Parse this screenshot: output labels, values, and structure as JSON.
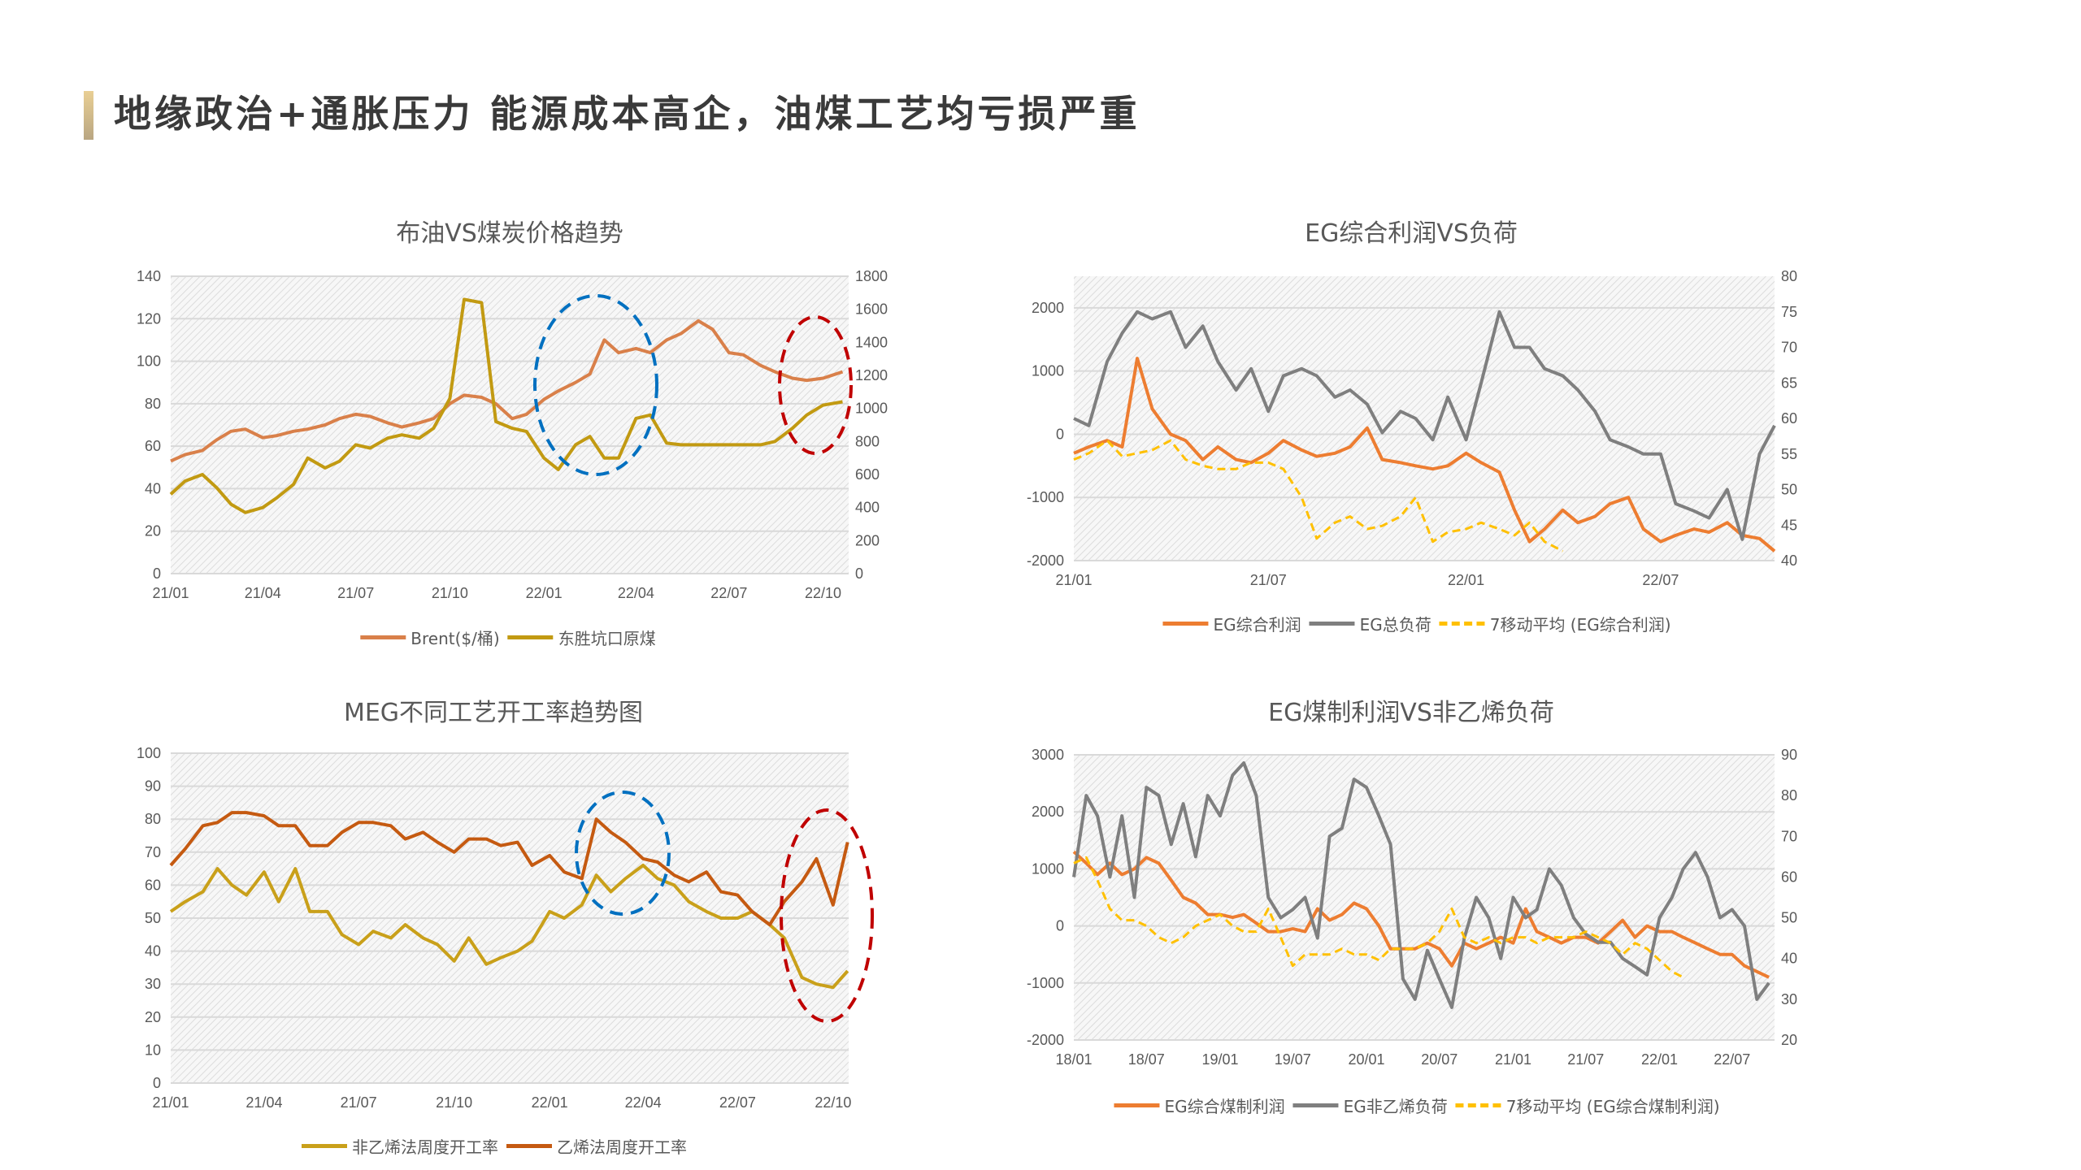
{
  "header": {
    "title": "地缘政治+通胀压力 能源成本高企，油煤工艺均亏损严重"
  },
  "chart_data": [
    {
      "type": "line",
      "title": "布油VS煤炭价格趋势",
      "xlim": [
        "2021-01-01",
        "2022-10-26"
      ],
      "xticks": [
        [
          "2021-01-01",
          "21/01"
        ],
        [
          "2021-04-01",
          "21/04"
        ],
        [
          "2021-07-01",
          "21/07"
        ],
        [
          "2021-10-01",
          "21/10"
        ],
        [
          "2022-01-01",
          "22/01"
        ],
        [
          "2022-04-01",
          "22/04"
        ],
        [
          "2022-07-01",
          "22/07"
        ],
        [
          "2022-10-01",
          "22/10"
        ]
      ],
      "ylim": [
        0,
        140
      ],
      "yticks": [
        0,
        20,
        40,
        60,
        80,
        100,
        120,
        140
      ],
      "y2lim": [
        0,
        1800
      ],
      "y2ticks": [
        0,
        200,
        400,
        600,
        800,
        1000,
        1200,
        1400,
        1600,
        1800
      ],
      "grid": true,
      "legend": "bottom",
      "x": [
        "2021-01-01",
        "2021-01-15",
        "2021-02-01",
        "2021-02-15",
        "2021-03-01",
        "2021-03-15",
        "2021-04-01",
        "2021-04-15",
        "2021-05-01",
        "2021-05-15",
        "2021-06-01",
        "2021-06-15",
        "2021-07-01",
        "2021-07-15",
        "2021-08-01",
        "2021-08-15",
        "2021-09-01",
        "2021-09-15",
        "2021-10-01",
        "2021-10-15",
        "2021-11-01",
        "2021-11-15",
        "2021-12-01",
        "2021-12-15",
        "2022-01-01",
        "2022-01-15",
        "2022-02-01",
        "2022-02-15",
        "2022-03-01",
        "2022-03-15",
        "2022-04-01",
        "2022-04-15",
        "2022-05-01",
        "2022-05-15",
        "2022-06-01",
        "2022-06-15",
        "2022-07-01",
        "2022-07-15",
        "2022-08-01",
        "2022-08-15",
        "2022-09-01",
        "2022-09-15",
        "2022-10-01",
        "2022-10-20"
      ],
      "series": [
        {
          "name": "Brent($/桶)",
          "axis": "left",
          "color": "#d9804a",
          "dashed": false,
          "values": [
            53,
            56,
            58,
            63,
            67,
            68,
            64,
            65,
            67,
            68,
            70,
            73,
            75,
            74,
            71,
            69,
            71,
            73,
            80,
            84,
            83,
            80,
            73,
            75,
            82,
            86,
            90,
            94,
            110,
            104,
            106,
            104,
            110,
            113,
            119,
            115,
            104,
            103,
            98,
            95,
            92,
            91,
            92,
            95
          ]
        },
        {
          "name": "东胜坑口原煤",
          "axis": "right",
          "color": "#c29a12",
          "dashed": false,
          "values": [
            480,
            560,
            600,
            520,
            420,
            370,
            400,
            460,
            540,
            700,
            640,
            680,
            780,
            760,
            820,
            840,
            820,
            880,
            1060,
            1660,
            1640,
            920,
            880,
            860,
            700,
            630,
            780,
            830,
            700,
            700,
            940,
            960,
            790,
            780,
            780,
            780,
            780,
            780,
            780,
            800,
            880,
            960,
            1020,
            1040
          ]
        }
      ]
    },
    {
      "type": "line",
      "title": "EG综合利润VS负荷",
      "xlim": [
        "2021-01-01",
        "2022-10-15"
      ],
      "xticks": [
        [
          "2021-01-01",
          "21/01"
        ],
        [
          "2021-07-01",
          "21/07"
        ],
        [
          "2022-01-01",
          "22/01"
        ],
        [
          "2022-07-01",
          "22/07"
        ]
      ],
      "ylim": [
        -2000,
        2500
      ],
      "yticks": [
        -2000,
        -1000,
        0,
        1000,
        2000
      ],
      "y2lim": [
        40,
        80
      ],
      "y2ticks": [
        40,
        45,
        50,
        55,
        60,
        65,
        70,
        75,
        80
      ],
      "grid": true,
      "legend": "bottom",
      "x": [
        "2021-01-01",
        "2021-01-15",
        "2021-02-01",
        "2021-02-15",
        "2021-03-01",
        "2021-03-15",
        "2021-04-01",
        "2021-04-15",
        "2021-05-01",
        "2021-05-15",
        "2021-06-01",
        "2021-06-15",
        "2021-07-01",
        "2021-07-15",
        "2021-08-01",
        "2021-08-15",
        "2021-09-01",
        "2021-09-15",
        "2021-10-01",
        "2021-10-15",
        "2021-11-01",
        "2021-11-15",
        "2021-12-01",
        "2021-12-15",
        "2022-01-01",
        "2022-01-15",
        "2022-02-01",
        "2022-02-15",
        "2022-03-01",
        "2022-03-15",
        "2022-04-01",
        "2022-04-15",
        "2022-05-01",
        "2022-05-15",
        "2022-06-01",
        "2022-06-15",
        "2022-07-01",
        "2022-07-15",
        "2022-08-01",
        "2022-08-15",
        "2022-09-01",
        "2022-09-15",
        "2022-10-01",
        "2022-10-15"
      ],
      "series": [
        {
          "name": "EG综合利润",
          "axis": "left",
          "color": "#ed7d31",
          "dashed": false,
          "values": [
            -300,
            -200,
            -100,
            -200,
            1200,
            400,
            0,
            -100,
            -400,
            -200,
            -400,
            -450,
            -300,
            -100,
            -250,
            -350,
            -300,
            -200,
            100,
            -400,
            -450,
            -500,
            -550,
            -500,
            -300,
            -450,
            -600,
            -1200,
            -1700,
            -1500,
            -1200,
            -1400,
            -1300,
            -1100,
            -1000,
            -1500,
            -1700,
            -1600,
            -1500,
            -1550,
            -1400,
            -1600,
            -1650,
            -1850
          ]
        },
        {
          "name": "EG总负荷",
          "axis": "right",
          "color": "#7f7f7f",
          "dashed": false,
          "values": [
            60,
            59,
            68,
            72,
            75,
            74,
            75,
            70,
            73,
            68,
            64,
            67,
            61,
            66,
            67,
            66,
            63,
            64,
            62,
            58,
            61,
            60,
            57,
            63,
            57,
            65,
            75,
            70,
            70,
            67,
            66,
            64,
            61,
            57,
            56,
            55,
            55,
            48,
            47,
            46,
            50,
            43,
            55,
            59
          ]
        },
        {
          "name": "7移动平均 (EG综合利润)",
          "axis": "left",
          "color": "#ffc000",
          "dashed": true,
          "values": [
            -400,
            -300,
            -100,
            -350,
            -300,
            -250,
            -100,
            -400,
            -500,
            -550,
            -550,
            -450,
            -450,
            -550,
            -1000,
            -1650,
            -1400,
            -1300,
            -1500,
            -1450,
            -1300,
            -1000,
            -1700,
            -1550,
            -1500,
            -1400,
            -1500,
            -1600,
            -1400,
            -1700,
            -1850,
            null,
            null,
            null,
            null,
            null,
            null,
            null,
            null,
            null,
            null,
            null,
            null,
            null
          ]
        }
      ]
    },
    {
      "type": "line",
      "title": "MEG不同工艺开工率趋势图",
      "xlim": [
        "2021-01-01",
        "2022-10-16"
      ],
      "xticks": [
        [
          "2021-01-01",
          "21/01"
        ],
        [
          "2021-04-01",
          "21/04"
        ],
        [
          "2021-07-01",
          "21/07"
        ],
        [
          "2021-10-01",
          "21/10"
        ],
        [
          "2022-01-01",
          "22/01"
        ],
        [
          "2022-04-01",
          "22/04"
        ],
        [
          "2022-07-01",
          "22/07"
        ],
        [
          "2022-10-01",
          "22/10"
        ]
      ],
      "ylim": [
        0,
        100
      ],
      "yticks": [
        0,
        10,
        20,
        30,
        40,
        50,
        60,
        70,
        80,
        90,
        100
      ],
      "grid": true,
      "legend": "bottom",
      "x": [
        "2021-01-01",
        "2021-01-15",
        "2021-02-01",
        "2021-02-15",
        "2021-03-01",
        "2021-03-15",
        "2021-04-01",
        "2021-04-15",
        "2021-05-01",
        "2021-05-15",
        "2021-06-01",
        "2021-06-15",
        "2021-07-01",
        "2021-07-15",
        "2021-08-01",
        "2021-08-15",
        "2021-09-01",
        "2021-09-15",
        "2021-10-01",
        "2021-10-15",
        "2021-11-01",
        "2021-11-15",
        "2021-12-01",
        "2021-12-15",
        "2022-01-01",
        "2022-01-15",
        "2022-02-01",
        "2022-02-15",
        "2022-03-01",
        "2022-03-15",
        "2022-04-01",
        "2022-04-15",
        "2022-05-01",
        "2022-05-15",
        "2022-06-01",
        "2022-06-15",
        "2022-07-01",
        "2022-07-15",
        "2022-08-01",
        "2022-08-15",
        "2022-09-01",
        "2022-09-15",
        "2022-10-01",
        "2022-10-15"
      ],
      "series": [
        {
          "name": "非乙烯法周度开工率",
          "axis": "left",
          "color": "#c9a01a",
          "dashed": false,
          "values": [
            52,
            55,
            58,
            65,
            60,
            57,
            64,
            55,
            65,
            52,
            52,
            45,
            42,
            46,
            44,
            48,
            44,
            42,
            37,
            44,
            36,
            38,
            40,
            43,
            52,
            50,
            54,
            63,
            58,
            62,
            66,
            62,
            60,
            55,
            52,
            50,
            50,
            52,
            48,
            44,
            32,
            30,
            29,
            34
          ]
        },
        {
          "name": "乙烯法周度开工率",
          "axis": "left",
          "color": "#c55a11",
          "dashed": false,
          "values": [
            66,
            71,
            78,
            79,
            82,
            82,
            81,
            78,
            78,
            72,
            72,
            76,
            79,
            79,
            78,
            74,
            76,
            73,
            70,
            74,
            74,
            72,
            73,
            66,
            69,
            64,
            62,
            80,
            76,
            73,
            68,
            67,
            63,
            61,
            64,
            58,
            57,
            52,
            48,
            55,
            61,
            68,
            54,
            73
          ]
        }
      ]
    },
    {
      "type": "line",
      "title": "EG煤制利润VS非乙烯负荷",
      "xlim": [
        "2018-01-01",
        "2022-10-15"
      ],
      "xticks": [
        [
          "2018-01-01",
          "18/01"
        ],
        [
          "2018-07-01",
          "18/07"
        ],
        [
          "2019-01-01",
          "19/01"
        ],
        [
          "2019-07-01",
          "19/07"
        ],
        [
          "2020-01-01",
          "20/01"
        ],
        [
          "2020-07-01",
          "20/07"
        ],
        [
          "2021-01-01",
          "21/01"
        ],
        [
          "2021-07-01",
          "21/07"
        ],
        [
          "2022-01-01",
          "22/01"
        ],
        [
          "2022-07-01",
          "22/07"
        ]
      ],
      "ylim": [
        -2000,
        3000
      ],
      "yticks": [
        -2000,
        -1000,
        0,
        1000,
        2000,
        3000
      ],
      "y2lim": [
        20,
        90
      ],
      "y2ticks": [
        20,
        30,
        40,
        50,
        60,
        70,
        80,
        90
      ],
      "grid": true,
      "legend": "bottom",
      "x": [
        "2018-01-01",
        "2018-02-01",
        "2018-03-01",
        "2018-04-01",
        "2018-05-01",
        "2018-06-01",
        "2018-07-01",
        "2018-08-01",
        "2018-09-01",
        "2018-10-01",
        "2018-11-01",
        "2018-12-01",
        "2019-01-01",
        "2019-02-01",
        "2019-03-01",
        "2019-04-01",
        "2019-05-01",
        "2019-06-01",
        "2019-07-01",
        "2019-08-01",
        "2019-09-01",
        "2019-10-01",
        "2019-11-01",
        "2019-12-01",
        "2020-01-01",
        "2020-02-01",
        "2020-03-01",
        "2020-04-01",
        "2020-05-01",
        "2020-06-01",
        "2020-07-01",
        "2020-08-01",
        "2020-09-01",
        "2020-10-01",
        "2020-11-01",
        "2020-12-01",
        "2021-01-01",
        "2021-02-01",
        "2021-03-01",
        "2021-04-01",
        "2021-05-01",
        "2021-06-01",
        "2021-07-01",
        "2021-08-01",
        "2021-09-01",
        "2021-10-01",
        "2021-11-01",
        "2021-12-01",
        "2022-01-01",
        "2022-02-01",
        "2022-03-01",
        "2022-04-01",
        "2022-05-01",
        "2022-06-01",
        "2022-07-01",
        "2022-08-01",
        "2022-09-01",
        "2022-10-01"
      ],
      "series": [
        {
          "name": "EG综合煤制利润",
          "axis": "left",
          "color": "#ed7d31",
          "dashed": false,
          "values": [
            1300,
            1100,
            900,
            1100,
            900,
            1000,
            1200,
            1100,
            800,
            500,
            400,
            200,
            200,
            150,
            200,
            50,
            -100,
            -100,
            -50,
            -100,
            300,
            100,
            200,
            400,
            300,
            0,
            -400,
            -400,
            -400,
            -300,
            -400,
            -700,
            -300,
            -400,
            -300,
            -200,
            -300,
            300,
            -100,
            -200,
            -300,
            -200,
            -200,
            -300,
            -100,
            100,
            -200,
            0,
            -100,
            -100,
            -200,
            -300,
            -400,
            -500,
            -500,
            -700,
            -800,
            -900
          ]
        },
        {
          "name": "EG非乙烯负荷",
          "axis": "right",
          "color": "#7f7f7f",
          "dashed": false,
          "values": [
            60,
            80,
            75,
            60,
            75,
            55,
            82,
            80,
            68,
            78,
            65,
            80,
            75,
            85,
            88,
            80,
            55,
            50,
            52,
            55,
            45,
            70,
            72,
            84,
            82,
            75,
            68,
            35,
            30,
            42,
            35,
            28,
            45,
            55,
            50,
            40,
            55,
            50,
            52,
            62,
            58,
            50,
            46,
            44,
            44,
            40,
            38,
            36,
            50,
            55,
            62,
            66,
            60,
            50,
            52,
            48,
            30,
            34
          ]
        },
        {
          "name": "7移动平均 (EG综合煤制利润)",
          "axis": "left",
          "color": "#ffc000",
          "dashed": true,
          "values": [
            1100,
            1200,
            800,
            300,
            100,
            100,
            0,
            -200,
            -300,
            -200,
            0,
            100,
            200,
            0,
            -100,
            -100,
            300,
            -200,
            -700,
            -500,
            -500,
            -500,
            -400,
            -500,
            -500,
            -600,
            -400,
            -400,
            -400,
            -300,
            -100,
            300,
            -200,
            -300,
            -200,
            -300,
            -200,
            -200,
            -300,
            -200,
            -200,
            -200,
            -100,
            -200,
            -300,
            -500,
            -300,
            -400,
            -600,
            -800,
            -900,
            null,
            null,
            null,
            null,
            null,
            null,
            null
          ]
        }
      ]
    }
  ]
}
